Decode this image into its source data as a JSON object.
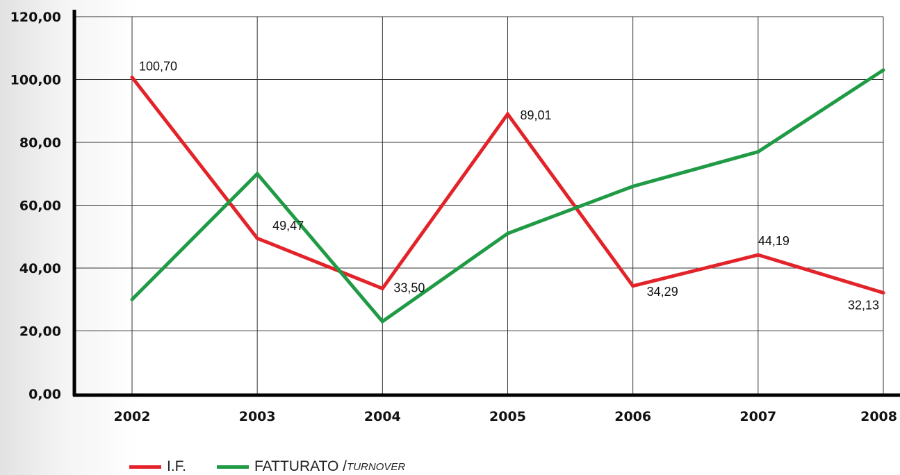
{
  "chart_data": {
    "type": "line",
    "x": [
      "2002",
      "2003",
      "2004",
      "2005",
      "2006",
      "2007",
      "2008"
    ],
    "ylim": [
      0,
      120
    ],
    "yticks": [
      "0,00",
      "20,00",
      "40,00",
      "60,00",
      "80,00",
      "100,00",
      "120,00"
    ],
    "grid": true,
    "legend_position": "bottom-left",
    "series": [
      {
        "name": "I.F.",
        "color": "#e3232a",
        "values": [
          100.7,
          49.47,
          33.5,
          89.01,
          34.29,
          44.19,
          32.13
        ],
        "labels": [
          "100,70",
          "49,47",
          "33,50",
          "89,01",
          "34,29",
          "44,19",
          "32,13"
        ]
      },
      {
        "name": "FATTURATO / TURNOVER",
        "color": "#1f9a45",
        "values": [
          30,
          70,
          23,
          51,
          66,
          77,
          103
        ]
      }
    ]
  },
  "legend": {
    "if_label": "I.F.",
    "turnover_main": "FATTURATO / ",
    "turnover_sub": "TURNOVER"
  }
}
